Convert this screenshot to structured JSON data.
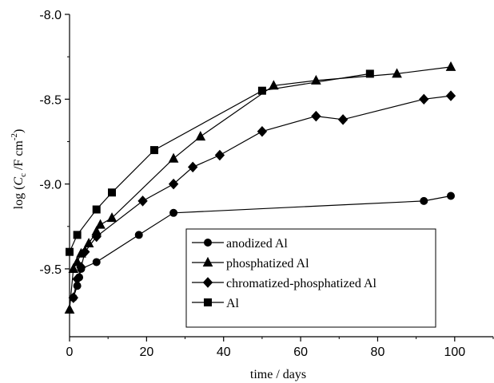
{
  "chart_data": {
    "type": "line",
    "xlabel": "time / days",
    "ylabel": {
      "prefix": "log (",
      "main": "C",
      "sub": "c",
      "middle": " /F cm",
      "sup": "-2",
      "suffix": ")"
    },
    "xlim": [
      0,
      110
    ],
    "ylim": [
      -9.9,
      -8.0
    ],
    "x_ticks": [
      0,
      20,
      40,
      60,
      80,
      100
    ],
    "x_tick_labels": [
      "0",
      "20",
      "40",
      "60",
      "80",
      "100"
    ],
    "y_ticks": [
      -8.0,
      -8.5,
      -9.0,
      -9.5
    ],
    "y_tick_labels": [
      "-8.0",
      "-8.5",
      "-9.0",
      "-9.5"
    ],
    "grid": false,
    "legend_position": "bottom-center",
    "series": [
      {
        "name": "anodized Al",
        "marker": "circle",
        "x": [
          1,
          2,
          2.5,
          3,
          7,
          18,
          27,
          92,
          99
        ],
        "y": [
          -9.67,
          -9.6,
          -9.55,
          -9.5,
          -9.46,
          -9.3,
          -9.17,
          -9.1,
          -9.07
        ]
      },
      {
        "name": "phosphatized Al",
        "marker": "triangle",
        "x": [
          0,
          1,
          2,
          3,
          5,
          7,
          8,
          11,
          27,
          34,
          53,
          64,
          85,
          99
        ],
        "y": [
          -9.74,
          -9.5,
          -9.46,
          -9.41,
          -9.35,
          -9.28,
          -9.24,
          -9.2,
          -8.85,
          -8.72,
          -8.42,
          -8.39,
          -8.35,
          -8.31
        ]
      },
      {
        "name": "chromatized-phosphatized Al",
        "marker": "diamond",
        "x": [
          1,
          2,
          3,
          4,
          7,
          19,
          27,
          32,
          39,
          50,
          64,
          71,
          92,
          99
        ],
        "y": [
          -9.67,
          -9.56,
          -9.49,
          -9.4,
          -9.31,
          -9.1,
          -9.0,
          -8.9,
          -8.83,
          -8.69,
          -8.6,
          -8.62,
          -8.5,
          -8.48
        ]
      },
      {
        "name": "Al",
        "marker": "square",
        "x": [
          0,
          2,
          7,
          11,
          22,
          50,
          78
        ],
        "y": [
          -9.4,
          -9.3,
          -9.15,
          -9.05,
          -8.8,
          -8.45,
          -8.35
        ]
      }
    ]
  }
}
